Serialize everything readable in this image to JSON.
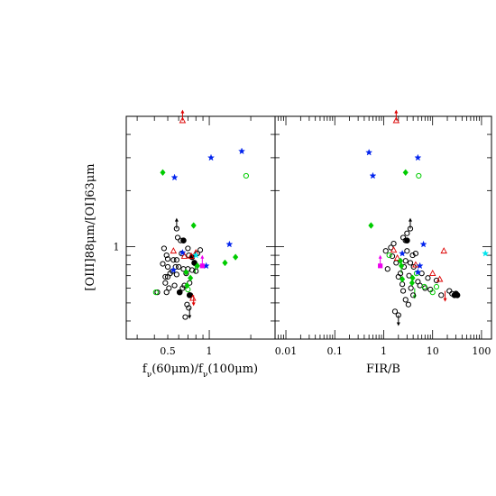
{
  "chart_data": [
    {
      "type": "scatter",
      "xscale": "log",
      "yscale": "log",
      "xlim": [
        0.25,
        3.0
      ],
      "ylim": [
        0.32,
        5.0
      ],
      "xlabel_parts": {
        "fnu1": "f",
        "nu1": "ν",
        "mid1": "(60",
        "mu1": "μ",
        "mid2": "m)/f",
        "nu2": "ν",
        "mid3": "(100",
        "mu2": "μ",
        "end": "m)"
      },
      "ylabel_parts": {
        "a": "[OIII]88",
        "mu1": "μ",
        "b": "m/[OI]63",
        "mu2": "μ",
        "c": "m"
      },
      "x_ticks": [
        {
          "value": 0.5,
          "label": "0.5"
        },
        {
          "value": 1,
          "label": "1"
        }
      ],
      "y_ticks": [
        {
          "value": 1,
          "label": "1"
        }
      ],
      "series": [
        {
          "marker": "open-circle",
          "color": "#000000",
          "points": [
            [
              0.42,
              0.57
            ],
            [
              0.46,
              0.81
            ],
            [
              0.47,
              0.98
            ],
            [
              0.48,
              0.64
            ],
            [
              0.49,
              0.9
            ],
            [
              0.5,
              0.69
            ],
            [
              0.48,
              0.69
            ],
            [
              0.49,
              0.57
            ],
            [
              0.52,
              0.72
            ],
            [
              0.5,
              0.78
            ],
            [
              0.51,
              0.6
            ],
            [
              0.54,
              0.74
            ],
            [
              0.55,
              0.85
            ],
            [
              0.57,
              0.78
            ],
            [
              0.56,
              0.62
            ],
            [
              0.59,
              1.12
            ],
            [
              0.58,
              1.25
            ],
            [
              0.58,
              0.71
            ],
            [
              0.6,
              0.78
            ],
            [
              0.64,
              0.6
            ],
            [
              0.63,
              0.92
            ],
            [
              0.62,
              1.08
            ],
            [
              0.66,
              0.62
            ],
            [
              0.68,
              0.72
            ],
            [
              0.7,
              0.98
            ],
            [
              0.71,
              0.9
            ],
            [
              0.72,
              0.64
            ],
            [
              0.73,
              0.55
            ],
            [
              0.69,
              0.49
            ],
            [
              0.67,
              0.42
            ],
            [
              0.71,
              0.47
            ],
            [
              0.7,
              0.76
            ],
            [
              0.75,
              0.75
            ],
            [
              0.82,
              0.92
            ],
            [
              0.8,
              0.74
            ],
            [
              0.86,
              0.96
            ],
            [
              0.65,
              0.76
            ],
            [
              0.58,
              0.85
            ],
            [
              0.5,
              0.86
            ]
          ]
        },
        {
          "marker": "filled-circle",
          "color": "#000000",
          "points": [
            [
              0.65,
              1.08
            ],
            [
              0.75,
              0.88
            ],
            [
              0.78,
              0.82
            ],
            [
              0.61,
              0.57
            ],
            [
              0.72,
              0.55
            ]
          ]
        },
        {
          "marker": "open-triangle",
          "color": "#dd0000",
          "points": [
            [
              0.64,
              4.75
            ],
            [
              0.55,
              0.95
            ],
            [
              0.66,
              0.89
            ],
            [
              0.74,
              0.89
            ],
            [
              0.8,
              0.93
            ],
            [
              0.76,
              0.53
            ]
          ]
        },
        {
          "marker": "filled-diamond",
          "color": "#00cc00",
          "points": [
            [
              0.46,
              2.5
            ],
            [
              0.77,
              1.3
            ],
            [
              0.82,
              0.79
            ],
            [
              0.73,
              0.68
            ],
            [
              1.3,
              0.82
            ],
            [
              1.55,
              0.88
            ],
            [
              0.68,
              0.73
            ],
            [
              0.69,
              0.62
            ]
          ]
        },
        {
          "marker": "open-circle",
          "color": "#00cc00",
          "points": [
            [
              1.85,
              2.4
            ],
            [
              0.41,
              0.57
            ],
            [
              0.7,
              0.59
            ]
          ]
        },
        {
          "marker": "star",
          "color": "#0022ee",
          "points": [
            [
              0.56,
              2.35
            ],
            [
              1.03,
              3.0
            ],
            [
              1.72,
              3.25
            ],
            [
              1.4,
              1.03
            ],
            [
              0.95,
              0.79
            ],
            [
              0.55,
              0.75
            ],
            [
              0.64,
              0.93
            ]
          ]
        },
        {
          "marker": "star",
          "color": "#00e5ee",
          "points": [
            [
              0.8,
              0.9
            ]
          ]
        },
        {
          "marker": "filled-square",
          "color": "#ee00ee",
          "points": [
            [
              0.89,
              0.79
            ]
          ]
        }
      ],
      "limits": [
        {
          "x": 0.64,
          "y": 4.75,
          "dir": "up",
          "color": "#dd0000"
        },
        {
          "x": 0.58,
          "y": 1.25,
          "dir": "up",
          "color": "#000000"
        },
        {
          "x": 0.72,
          "y": 0.47,
          "dir": "down",
          "color": "#000000"
        },
        {
          "x": 0.77,
          "y": 0.55,
          "dir": "down",
          "color": "#dd0000"
        },
        {
          "x": 0.89,
          "y": 0.79,
          "dir": "up",
          "color": "#ee00ee"
        },
        {
          "x": 0.79,
          "y": 0.72,
          "dir": "up",
          "color": "#00cc00"
        }
      ]
    },
    {
      "type": "scatter",
      "xscale": "log",
      "yscale": "log",
      "xlim": [
        0.006,
        160
      ],
      "ylim": [
        0.32,
        5.0
      ],
      "xlabel": "FIR/B",
      "x_ticks": [
        {
          "value": 0.01,
          "label": "0.01"
        },
        {
          "value": 0.1,
          "label": "0.1"
        },
        {
          "value": 1,
          "label": "1"
        },
        {
          "value": 10,
          "label": "10"
        },
        {
          "value": 100,
          "label": "100"
        }
      ],
      "series": [
        {
          "marker": "open-circle",
          "color": "#000000",
          "points": [
            [
              1.2,
              0.76
            ],
            [
              1.5,
              0.89
            ],
            [
              1.6,
              1.04
            ],
            [
              1.8,
              0.82
            ],
            [
              2.0,
              0.69
            ],
            [
              2.2,
              0.72
            ],
            [
              2.4,
              0.63
            ],
            [
              2.6,
              0.78
            ],
            [
              2.8,
              1.08
            ],
            [
              2.5,
              1.12
            ],
            [
              3.0,
              0.95
            ],
            [
              3.3,
              0.7
            ],
            [
              3.5,
              0.82
            ],
            [
              3.6,
              0.6
            ],
            [
              3.9,
              0.9
            ],
            [
              4.1,
              0.78
            ],
            [
              4.5,
              0.92
            ],
            [
              5.0,
              0.65
            ],
            [
              5.5,
              0.62
            ],
            [
              6.0,
              0.72
            ],
            [
              7.0,
              0.6
            ],
            [
              8.0,
              0.68
            ],
            [
              9.0,
              0.59
            ],
            [
              12.0,
              0.66
            ],
            [
              15.0,
              0.55
            ],
            [
              22.0,
              0.58
            ],
            [
              2.8,
              0.52
            ],
            [
              3.2,
              0.49
            ],
            [
              1.7,
              0.45
            ],
            [
              2.0,
              0.43
            ],
            [
              2.5,
              0.58
            ],
            [
              2.8,
              0.84
            ],
            [
              4.0,
              0.55
            ],
            [
              3.5,
              1.25
            ],
            [
              3.0,
              1.18
            ],
            [
              1.1,
              0.95
            ],
            [
              1.4,
              0.99
            ],
            [
              25.0,
              0.56
            ]
          ]
        },
        {
          "marker": "filled-circle",
          "color": "#000000",
          "points": [
            [
              3.0,
              1.08
            ],
            [
              28.0,
              0.55
            ],
            [
              32.0,
              0.55
            ],
            [
              30.0,
              0.56
            ]
          ]
        },
        {
          "marker": "open-triangle",
          "color": "#dd0000",
          "points": [
            [
              1.8,
              4.75
            ],
            [
              1.6,
              0.96
            ],
            [
              1.9,
              0.87
            ],
            [
              4.5,
              0.8
            ],
            [
              10.0,
              0.72
            ],
            [
              14.0,
              0.67
            ],
            [
              17.0,
              0.95
            ]
          ]
        },
        {
          "marker": "filled-diamond",
          "color": "#00cc00",
          "points": [
            [
              2.8,
              2.5
            ],
            [
              0.55,
              1.3
            ],
            [
              2.3,
              0.79
            ],
            [
              2.4,
              0.67
            ],
            [
              3.8,
              0.64
            ],
            [
              3.9,
              0.68
            ],
            [
              2.2,
              0.84
            ]
          ]
        },
        {
          "marker": "open-circle",
          "color": "#00cc00",
          "points": [
            [
              5.2,
              2.4
            ],
            [
              1.3,
              0.9
            ],
            [
              10.0,
              0.57
            ],
            [
              6.8,
              0.61
            ],
            [
              4.7,
              0.72
            ],
            [
              12.0,
              0.61
            ]
          ]
        },
        {
          "marker": "star",
          "color": "#0022ee",
          "points": [
            [
              0.5,
              3.2
            ],
            [
              0.6,
              2.4
            ],
            [
              5.0,
              3.0
            ],
            [
              6.5,
              1.03
            ],
            [
              5.5,
              0.79
            ],
            [
              5.0,
              0.73
            ],
            [
              2.4,
              0.92
            ]
          ]
        },
        {
          "marker": "star",
          "color": "#00e5ee",
          "points": [
            [
              120.0,
              0.92
            ]
          ]
        },
        {
          "marker": "filled-square",
          "color": "#ee00ee",
          "points": [
            [
              0.85,
              0.79
            ]
          ]
        }
      ],
      "limits": [
        {
          "x": 1.8,
          "y": 4.75,
          "dir": "up",
          "color": "#dd0000"
        },
        {
          "x": 3.5,
          "y": 1.25,
          "dir": "up",
          "color": "#000000"
        },
        {
          "x": 2.0,
          "y": 0.43,
          "dir": "down",
          "color": "#000000"
        },
        {
          "x": 0.85,
          "y": 0.79,
          "dir": "up",
          "color": "#ee00ee"
        },
        {
          "x": 4.3,
          "y": 0.6,
          "dir": "down",
          "color": "#00cc00"
        },
        {
          "x": 2.3,
          "y": 0.72,
          "dir": "up",
          "color": "#00cc00"
        },
        {
          "x": 18.0,
          "y": 0.58,
          "dir": "down",
          "color": "#dd0000"
        }
      ]
    }
  ]
}
